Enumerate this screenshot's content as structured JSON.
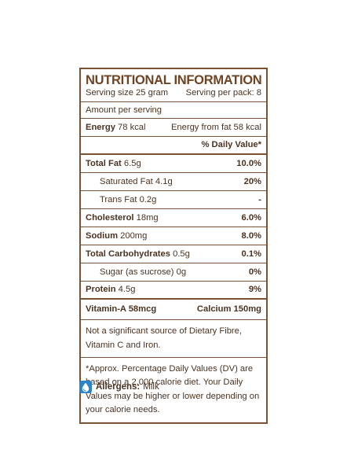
{
  "panel": {
    "title": "NUTRITIONAL INFORMATION",
    "serving_size": "Serving size 25 gram",
    "serving_per_pack": "Serving per pack: 8",
    "amount_per_serving": "Amount per serving",
    "energy_label": "Energy",
    "energy_value": "78 kcal",
    "energy_from_fat": "Energy from fat 58 kcal",
    "daily_value_header": "% Daily Value*",
    "nutrients": [
      {
        "label": "Total Fat",
        "amount": "6.5g",
        "dv": "10.0%"
      },
      {
        "label": "Saturated Fat",
        "amount": "4.1g",
        "dv": "20%"
      },
      {
        "label": "Trans Fat",
        "amount": "0.2g",
        "dv": "-"
      },
      {
        "label": "Cholesterol",
        "amount": "18mg",
        "dv": "6.0%"
      },
      {
        "label": "Sodium",
        "amount": "200mg",
        "dv": "8.0%"
      },
      {
        "label": "Total Carbohydrates",
        "amount": "0.5g",
        "dv": "0.1%"
      },
      {
        "label": "Sugar (as sucrose)",
        "amount": "0g",
        "dv": "0%"
      },
      {
        "label": "Protein",
        "amount": "4.5g",
        "dv": "9%"
      }
    ],
    "vitamin_a": "Vitamin-A 58mcg",
    "calcium": "Calcium 150mg",
    "note_sources": "Not a significant source of Dietary Fibre, Vitamin C and Iron.",
    "note_dv": "*Approx. Percentage Daily Values (DV) are based on a 2,000 calorie diet. Your Daily Values may be higher or lower depending on your calorie needs."
  },
  "allergens": {
    "label": "Allergens:",
    "value": "Milk",
    "icon": "milk-drop-icon",
    "icon_color": "#2b84c9"
  }
}
